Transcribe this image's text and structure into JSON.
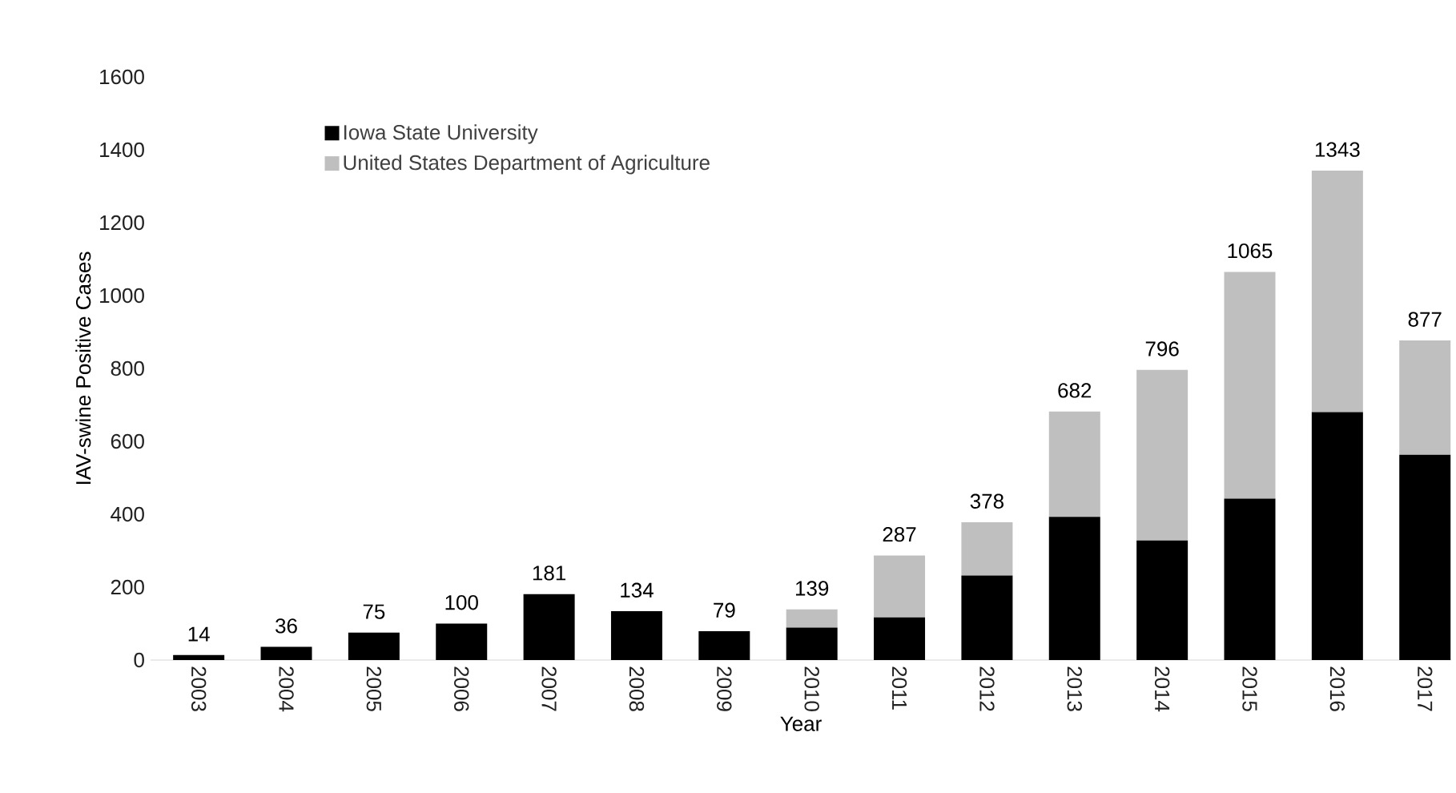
{
  "chart_data": {
    "type": "bar",
    "stacked": true,
    "xlabel": "Year",
    "ylabel": "IAV-swine Positive Cases",
    "categories": [
      "2003",
      "2004",
      "2005",
      "2006",
      "2007",
      "2008",
      "2009",
      "2010",
      "2011",
      "2012",
      "2013",
      "2014",
      "2015",
      "2016",
      "2017"
    ],
    "series": [
      {
        "name": "Iowa State University",
        "color": "#000000",
        "values": [
          14,
          36,
          75,
          100,
          181,
          134,
          79,
          89,
          117,
          232,
          393,
          328,
          443,
          680,
          563
        ]
      },
      {
        "name": "United States Department of Agriculture",
        "color": "#bfbfbf",
        "values": [
          0,
          0,
          0,
          0,
          0,
          0,
          0,
          50,
          170,
          146,
          289,
          468,
          622,
          663,
          314
        ]
      }
    ],
    "totals": [
      "14",
      "36",
      "75",
      "100",
      "181",
      "134",
      "79",
      "139",
      "287",
      "378",
      "682",
      "796",
      "1065",
      "1343",
      "877"
    ],
    "ylim": [
      0,
      1600
    ],
    "yticks": [
      0,
      200,
      400,
      600,
      800,
      1000,
      1200,
      1400,
      1600
    ],
    "legend": "top left"
  }
}
